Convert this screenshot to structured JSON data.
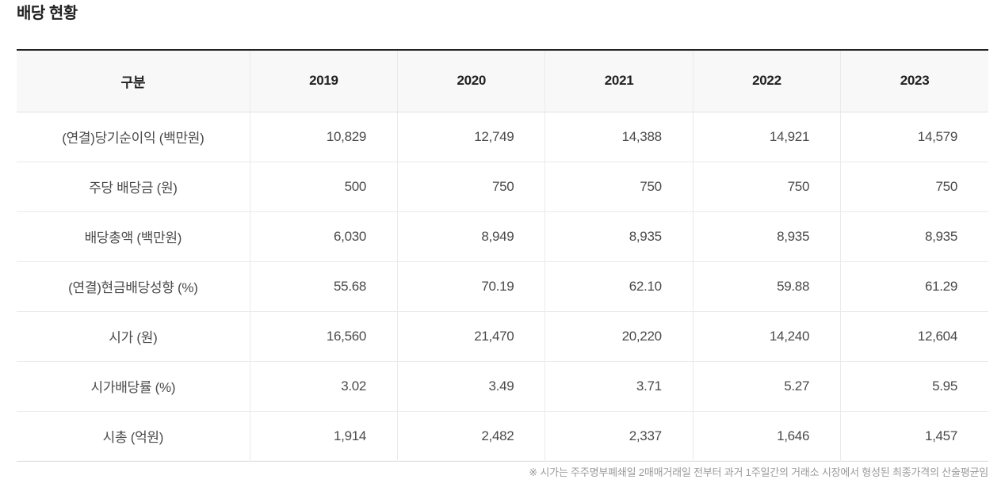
{
  "title": "배당 현황",
  "table": {
    "columns": [
      "구분",
      "2019",
      "2020",
      "2021",
      "2022",
      "2023"
    ],
    "rows": [
      {
        "label": "(연결)당기순이익 (백만원)",
        "values": [
          "10,829",
          "12,749",
          "14,388",
          "14,921",
          "14,579"
        ]
      },
      {
        "label": "주당 배당금 (원)",
        "values": [
          "500",
          "750",
          "750",
          "750",
          "750"
        ]
      },
      {
        "label": "배당총액 (백만원)",
        "values": [
          "6,030",
          "8,949",
          "8,935",
          "8,935",
          "8,935"
        ]
      },
      {
        "label": "(연결)현금배당성향 (%)",
        "values": [
          "55.68",
          "70.19",
          "62.10",
          "59.88",
          "61.29"
        ]
      },
      {
        "label": "시가 (원)",
        "values": [
          "16,560",
          "21,470",
          "20,220",
          "14,240",
          "12,604"
        ]
      },
      {
        "label": "시가배당률 (%)",
        "values": [
          "3.02",
          "3.49",
          "3.71",
          "5.27",
          "5.95"
        ]
      },
      {
        "label": "시총 (억원)",
        "values": [
          "1,914",
          "2,482",
          "2,337",
          "1,646",
          "1,457"
        ]
      }
    ]
  },
  "footnote": "※ 시가는 주주명부폐쇄일 2매매거래일 전부터 과거 1주일간의 거래소 시장에서 형성된 최종가격의 산술평균임",
  "colors": {
    "header_background": "#f8f8f8",
    "top_border": "#222222",
    "divider": "#eaeaea",
    "bottom_border": "#d5d5d5",
    "heading_text": "#222222",
    "cell_text": "#4a4a4a",
    "footnote_text": "#9a9a9a"
  }
}
